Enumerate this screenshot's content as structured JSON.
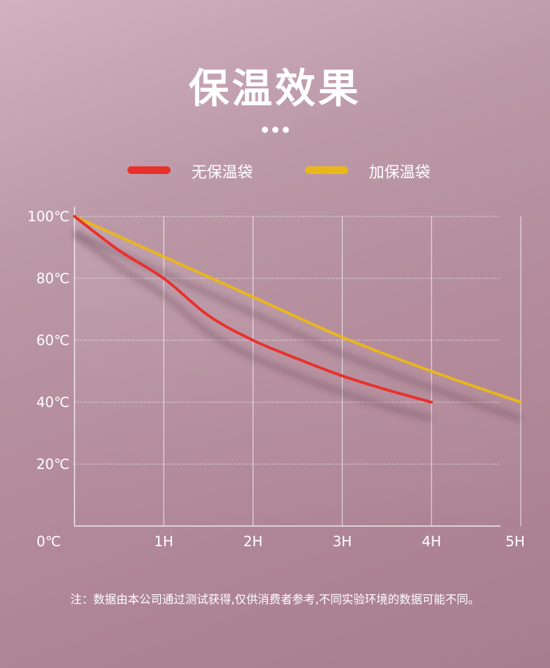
{
  "title": "保温效果",
  "footnote": "注：数据由本公司通过测试获得,仅供消费者参考,不同实验环境的数据可能不同。",
  "colors": {
    "without_bag": "#e8312c",
    "with_bag": "#e9b71b",
    "grid": "#ffffff",
    "text": "#ffffff"
  },
  "chart_data": {
    "type": "line",
    "x_ticks": [
      "0℃",
      "1H",
      "2H",
      "3H",
      "4H",
      "5H"
    ],
    "y_ticks": [
      "20℃",
      "40℃",
      "60℃",
      "80℃",
      "100℃"
    ],
    "x_range": [
      0,
      5
    ],
    "y_range": [
      0,
      100
    ],
    "grid": true,
    "legend_position": "top-center",
    "series": [
      {
        "name": "无保温袋",
        "color": "#e8312c",
        "x": [
          0,
          0.5,
          1,
          1.5,
          2,
          2.5,
          3,
          3.5,
          4
        ],
        "y": [
          100,
          89,
          80,
          68,
          60,
          54,
          48.5,
          44,
          40
        ]
      },
      {
        "name": "加保温袋",
        "color": "#e9b71b",
        "x": [
          0,
          1,
          2,
          3,
          4,
          5
        ],
        "y": [
          100,
          87,
          74,
          61,
          50,
          40
        ]
      }
    ]
  }
}
